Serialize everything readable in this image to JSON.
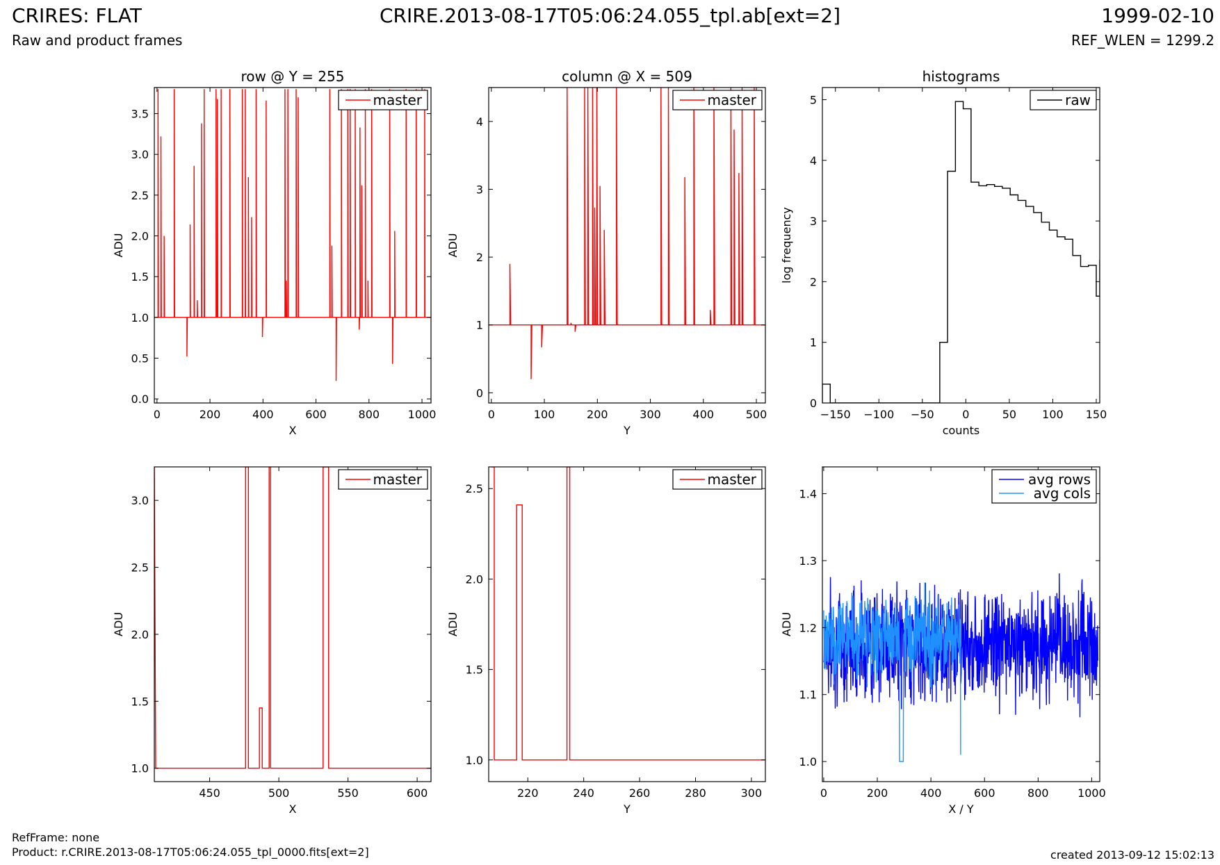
{
  "header": {
    "title_left": "CRIRES: FLAT",
    "subtitle_left": "Raw and product frames",
    "title_center": "CRIRE.2013-08-17T05:06:24.055_tpl.ab[ext=2]",
    "title_right": "1999-02-10",
    "subtitle_right": "REF_WLEN = 1299.2"
  },
  "footer": {
    "refframe": "RefFrame: none",
    "product": "Product: r.CRIRE.2013-08-17T05:06:24.055_tpl_0000.fits[ext=2]",
    "created": "created 2013-09-12 15:02:13"
  },
  "colors": {
    "master": "#ff0000",
    "raw": "#000000",
    "avg_rows": "#0000ff",
    "avg_cols": "#1e90ff"
  },
  "chart_data": [
    {
      "type": "line",
      "title": "row @ Y = 255",
      "xlabel": "X",
      "ylabel": "ADU",
      "xlim": [
        -10,
        1034
      ],
      "ylim": [
        -0.05,
        3.82
      ],
      "xticks": [
        0,
        200,
        400,
        600,
        800,
        1000
      ],
      "yticks": [
        0.0,
        0.5,
        1.0,
        1.5,
        2.0,
        2.5,
        3.0,
        3.5
      ],
      "ytick_decimals": 1,
      "legend": "top-right",
      "series": [
        {
          "name": "master",
          "style": "spikes",
          "baseline": 1.0,
          "color": "#ff0000",
          "spikes": [
            [
              4,
              3.8
            ],
            [
              15,
              3.22
            ],
            [
              27,
              2.0
            ],
            [
              65,
              3.8
            ],
            [
              113,
              0.52
            ],
            [
              125,
              2.14
            ],
            [
              140,
              2.86
            ],
            [
              152,
              1.21
            ],
            [
              168,
              3.38
            ],
            [
              178,
              3.8
            ],
            [
              223,
              3.8
            ],
            [
              228,
              3.68
            ],
            [
              242,
              3.8
            ],
            [
              275,
              3.8
            ],
            [
              322,
              3.8
            ],
            [
              333,
              3.8
            ],
            [
              345,
              2.72
            ],
            [
              357,
              2.23
            ],
            [
              374,
              3.8
            ],
            [
              398,
              0.76
            ],
            [
              412,
              3.66
            ],
            [
              483,
              3.8
            ],
            [
              488,
              1.45
            ],
            [
              494,
              3.8
            ],
            [
              525,
              3.8
            ],
            [
              533,
              3.7
            ],
            [
              652,
              3.8
            ],
            [
              660,
              1.88
            ],
            [
              676,
              0.22
            ],
            [
              696,
              3.8
            ],
            [
              720,
              3.8
            ],
            [
              729,
              3.8
            ],
            [
              748,
              3.8
            ],
            [
              763,
              0.85
            ],
            [
              766,
              3.33
            ],
            [
              773,
              2.62
            ],
            [
              786,
              3.8
            ],
            [
              796,
              1.45
            ],
            [
              810,
              3.8
            ],
            [
              878,
              3.8
            ],
            [
              889,
              0.43
            ],
            [
              897,
              2.06
            ],
            [
              940,
              3.8
            ],
            [
              978,
              3.8
            ],
            [
              1010,
              3.8
            ]
          ]
        }
      ]
    },
    {
      "type": "line",
      "title": "column @ X = 509",
      "xlabel": "Y",
      "ylabel": "ADU",
      "xlim": [
        -5,
        517
      ],
      "ylim": [
        -0.15,
        4.5
      ],
      "xticks": [
        0,
        100,
        200,
        300,
        400,
        500
      ],
      "yticks": [
        0,
        1,
        2,
        3,
        4
      ],
      "ytick_decimals": 0,
      "legend": "top-right",
      "series": [
        {
          "name": "master",
          "style": "spikes",
          "baseline": 1.0,
          "color": "#ff0000",
          "spikes": [
            [
              35,
              1.9
            ],
            [
              75,
              0.2
            ],
            [
              95,
              0.67
            ],
            [
              143,
              4.5
            ],
            [
              150,
              1.03
            ],
            [
              158,
              0.9
            ],
            [
              176,
              4.5
            ],
            [
              182,
              4.5
            ],
            [
              191,
              4.5
            ],
            [
              195,
              2.73
            ],
            [
              199,
              4.5
            ],
            [
              205,
              3.05
            ],
            [
              213,
              2.4
            ],
            [
              236,
              4.5
            ],
            [
              320,
              4.5
            ],
            [
              334,
              4.5
            ],
            [
              365,
              3.18
            ],
            [
              382,
              4.5
            ],
            [
              413,
              1.22
            ],
            [
              420,
              4.5
            ],
            [
              452,
              4.5
            ],
            [
              458,
              3.88
            ],
            [
              467,
              3.24
            ],
            [
              473,
              4.5
            ],
            [
              496,
              4.5
            ]
          ]
        }
      ]
    },
    {
      "type": "line",
      "title": "histograms",
      "xlabel": "counts",
      "ylabel": "log frequency",
      "xlim": [
        -165,
        154
      ],
      "ylim": [
        0,
        5.2
      ],
      "xticks": [
        -150,
        -100,
        -50,
        0,
        50,
        100,
        150
      ],
      "yticks": [
        0,
        1,
        2,
        3,
        4,
        5
      ],
      "ytick_decimals": 0,
      "legend": "top-right",
      "series": [
        {
          "name": "raw",
          "style": "steps",
          "color": "#000000",
          "edges": [
            -165,
            -156,
            -147,
            -138,
            -129,
            -120,
            -111,
            -102,
            -93,
            -84,
            -75,
            -66,
            -57,
            -48,
            -39,
            -30,
            -21,
            -12,
            -3,
            6,
            15,
            24,
            33,
            42,
            51,
            60,
            69,
            78,
            87,
            96,
            105,
            114,
            123,
            132,
            141,
            150,
            154
          ],
          "values": [
            0.31,
            0,
            0,
            0,
            0,
            0,
            0,
            0,
            0,
            0,
            0,
            0,
            0,
            0,
            0,
            1.0,
            3.82,
            4.97,
            4.85,
            3.64,
            3.58,
            3.6,
            3.57,
            3.54,
            3.43,
            3.34,
            3.24,
            3.14,
            2.98,
            2.85,
            2.74,
            2.7,
            2.43,
            2.25,
            2.27,
            1.76,
            2.36
          ]
        }
      ]
    },
    {
      "type": "line",
      "title": "",
      "xlabel": "X",
      "ylabel": "ADU",
      "xlim": [
        410,
        610
      ],
      "ylim": [
        0.9,
        3.25
      ],
      "xticks": [
        450,
        500,
        550,
        600
      ],
      "yticks": [
        1.0,
        1.5,
        2.0,
        2.5,
        3.0
      ],
      "ytick_decimals": 1,
      "legend": "top-right",
      "series": [
        {
          "name": "master",
          "style": "steps",
          "color": "#ff0000",
          "points": [
            [
              410,
              3.25
            ],
            [
              411,
              1.0
            ],
            [
              476,
              1.0
            ],
            [
              476,
              3.25
            ],
            [
              478,
              3.25
            ],
            [
              478,
              1.0
            ],
            [
              486,
              1.0
            ],
            [
              486,
              1.45
            ],
            [
              488,
              1.45
            ],
            [
              488,
              1.0
            ],
            [
              493,
              1.0
            ],
            [
              493,
              3.25
            ],
            [
              494,
              3.25
            ],
            [
              494,
              1.0
            ],
            [
              532,
              1.0
            ],
            [
              532,
              3.25
            ],
            [
              536,
              3.25
            ],
            [
              536,
              1.0
            ],
            [
              610,
              1.0
            ]
          ]
        }
      ]
    },
    {
      "type": "line",
      "title": "",
      "xlabel": "Y",
      "ylabel": "ADU",
      "xlim": [
        206,
        305
      ],
      "ylim": [
        0.88,
        2.62
      ],
      "xticks": [
        220,
        240,
        260,
        280,
        300
      ],
      "yticks": [
        1.0,
        1.5,
        2.0,
        2.5
      ],
      "ytick_decimals": 1,
      "legend": "top-right",
      "series": [
        {
          "name": "master",
          "style": "steps",
          "color": "#ff0000",
          "points": [
            [
              207,
              2.62
            ],
            [
              208,
              2.62
            ],
            [
              208,
              1.0
            ],
            [
              216,
              1.0
            ],
            [
              216,
              2.41
            ],
            [
              218,
              2.41
            ],
            [
              218,
              1.0
            ],
            [
              234,
              1.0
            ],
            [
              234,
              2.62
            ],
            [
              235,
              2.62
            ],
            [
              235,
              1.0
            ],
            [
              305,
              1.0
            ]
          ]
        }
      ]
    },
    {
      "type": "line",
      "title": "",
      "xlabel": "X / Y",
      "ylabel": "ADU",
      "xlim": [
        -5,
        1030
      ],
      "ylim": [
        0.97,
        1.44
      ],
      "xticks": [
        0,
        200,
        400,
        600,
        800,
        1000
      ],
      "yticks": [
        1.0,
        1.1,
        1.2,
        1.3,
        1.4
      ],
      "ytick_decimals": 1,
      "legend": "top-right",
      "series": [
        {
          "name": "avg rows",
          "style": "noise",
          "color": "#0000ff",
          "n": 1024,
          "mean": 1.175,
          "amp": 0.075,
          "seed": 7
        },
        {
          "name": "avg cols",
          "style": "noise",
          "color": "#1e90ff",
          "n": 512,
          "mean": 1.185,
          "amp": 0.055,
          "seed": 13,
          "overrides": [
            [
              283,
              1.0
            ],
            [
              284,
              1.0
            ],
            [
              285,
              1.0
            ],
            [
              286,
              1.0
            ],
            [
              287,
              1.0
            ],
            [
              288,
              1.0
            ],
            [
              289,
              1.0
            ],
            [
              290,
              1.0
            ],
            [
              291,
              1.0
            ],
            [
              292,
              1.0
            ],
            [
              293,
              1.0
            ],
            [
              294,
              1.0
            ],
            [
              295,
              1.0
            ],
            [
              296,
              1.0
            ],
            [
              297,
              1.0
            ],
            [
              511,
              1.01
            ]
          ]
        }
      ]
    }
  ]
}
